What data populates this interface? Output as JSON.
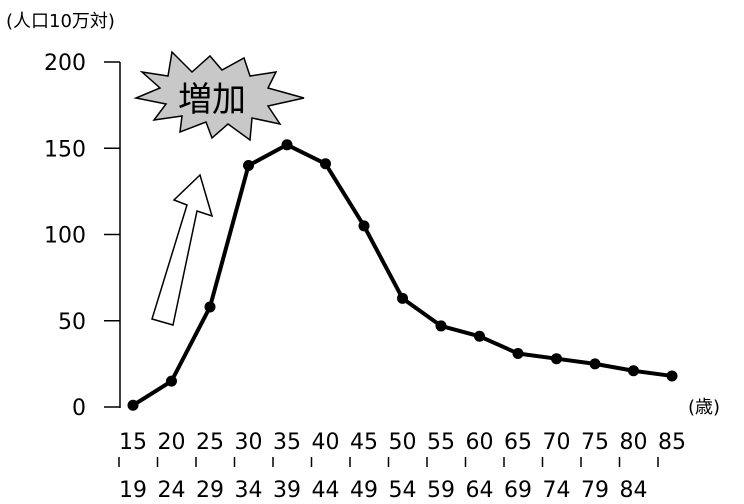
{
  "chart_data": {
    "type": "line",
    "title": "",
    "y_unit_label": "(人口10万対)",
    "x_unit_label": "(歳)",
    "ylim": [
      0,
      200
    ],
    "y_ticks": [
      "200",
      "150",
      "100",
      "50",
      "0"
    ],
    "grid": false,
    "categories": [
      {
        "start": "15",
        "end": "19"
      },
      {
        "start": "20",
        "end": "24"
      },
      {
        "start": "25",
        "end": "29"
      },
      {
        "start": "30",
        "end": "34"
      },
      {
        "start": "35",
        "end": "39"
      },
      {
        "start": "40",
        "end": "44"
      },
      {
        "start": "45",
        "end": "49"
      },
      {
        "start": "50",
        "end": "54"
      },
      {
        "start": "55",
        "end": "59"
      },
      {
        "start": "60",
        "end": "64"
      },
      {
        "start": "65",
        "end": "69"
      },
      {
        "start": "70",
        "end": "74"
      },
      {
        "start": "75",
        "end": "79"
      },
      {
        "start": "80",
        "end": "84"
      },
      {
        "start": "85",
        "end": ""
      }
    ],
    "series": [
      {
        "values": [
          1,
          15,
          58,
          140,
          152,
          141,
          105,
          63,
          47,
          41,
          31,
          28,
          25,
          21,
          18
        ]
      }
    ],
    "annotations": [
      {
        "text": "増加",
        "shape": "starburst",
        "color": "#c8c8c8"
      },
      {
        "shape": "hollow-arrow-up"
      }
    ],
    "line_color": "#000000"
  }
}
